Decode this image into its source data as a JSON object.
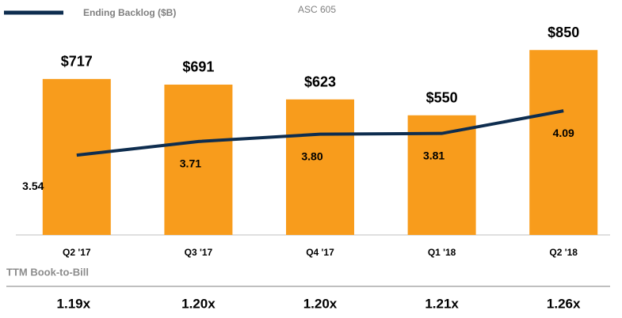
{
  "chart_data": {
    "type": "bar",
    "subtitle": "ASC 605",
    "categories": [
      "Q2 '17",
      "Q3 '17",
      "Q4 '17",
      "Q1 '18",
      "Q2 '18"
    ],
    "series": [
      {
        "name": "Backlog",
        "type": "bar",
        "color": "#f89c1c",
        "values": [
          717,
          691,
          623,
          550,
          850
        ],
        "value_labels": [
          "$717",
          "$691",
          "$623",
          "$550",
          "$850"
        ]
      },
      {
        "name": "Ending Backlog ($B)",
        "type": "line",
        "axis": "y2",
        "color": "#0e2d4f",
        "values": [
          3.54,
          3.71,
          3.8,
          3.81,
          4.09
        ],
        "value_labels": [
          "3.54",
          "3.71",
          "3.80",
          "3.81",
          "4.09"
        ]
      }
    ],
    "ylim": [
      0,
      1000
    ],
    "y2lim": [
      2.55,
      5.25
    ],
    "legend": "top-left"
  },
  "book_to_bill": {
    "title": "TTM Book-to-Bill",
    "values": [
      1.19,
      1.2,
      1.2,
      1.21,
      1.26
    ],
    "value_labels": [
      "1.19x",
      "1.20x",
      "1.20x",
      "1.21x",
      "1.26x"
    ]
  }
}
